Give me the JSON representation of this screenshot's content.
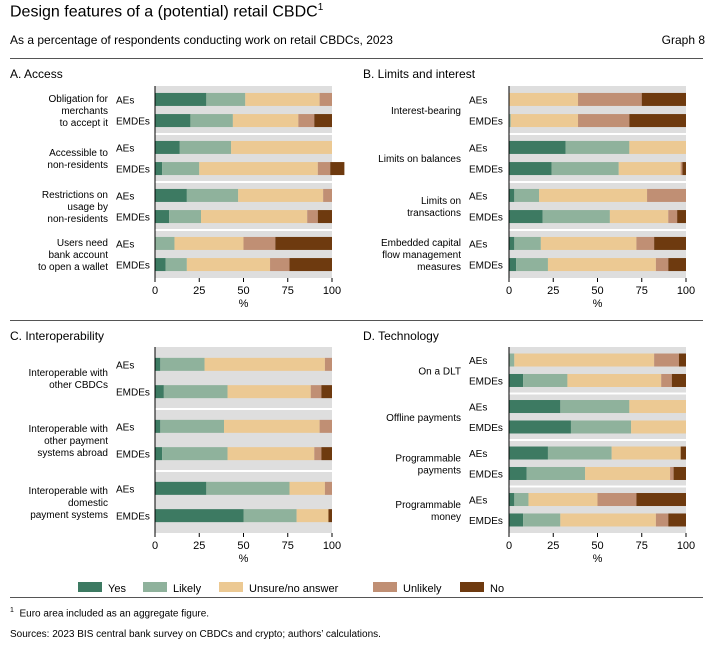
{
  "title": "Design features of a (potential) retail CBDC",
  "title_note": "1",
  "subtitle": "As a percentage of respondents conducting work on retail CBDCs, 2023",
  "graph_number": "Graph 8",
  "footnote_mark": "1",
  "footnote": "Euro area included as an aggregate figure.",
  "sources": "Sources: 2023 BIS central bank survey on CBDCs and crypto; authors’ calculations.",
  "colors": {
    "Yes": "#3d7a62",
    "Likely": "#8fb29c",
    "Unsure/no answer": "#ecc993",
    "Unlikely": "#c08f74",
    "No": "#6e3a0f",
    "panel_bg": "#dedede"
  },
  "chart_data": [
    {
      "type": "bar",
      "orientation": "horizontal",
      "stacked": true,
      "title": "A. Access",
      "xlabel": "%",
      "xlim": [
        0,
        100
      ],
      "xticks": [
        0,
        25,
        50,
        75,
        100
      ],
      "series_names": [
        "Yes",
        "Likely",
        "Unsure/no answer",
        "Unlikely",
        "No"
      ],
      "groups": [
        {
          "label": [
            "Obligation for",
            "merchants",
            "to accept it"
          ],
          "rows": [
            {
              "name": "AEs",
              "values": [
                29,
                22,
                42,
                7,
                0
              ]
            },
            {
              "name": "EMDEs",
              "values": [
                20,
                24,
                37,
                9,
                10
              ]
            }
          ]
        },
        {
          "label": [
            "Accessible to",
            "non-residents"
          ],
          "rows": [
            {
              "name": "AEs",
              "values": [
                14,
                29,
                57,
                0,
                0
              ]
            },
            {
              "name": "EMDEs",
              "values": [
                4,
                21,
                67,
                7,
                8
              ]
            }
          ]
        },
        {
          "label": [
            "Restrictions on",
            "usage by",
            "non-residents"
          ],
          "rows": [
            {
              "name": "AEs",
              "values": [
                18,
                29,
                48,
                5,
                0
              ]
            },
            {
              "name": "EMDEs",
              "values": [
                8,
                18,
                60,
                6,
                8
              ]
            }
          ]
        },
        {
          "label": [
            "Users need",
            "bank account",
            "to open a wallet"
          ],
          "rows": [
            {
              "name": "AEs",
              "values": [
                0,
                11,
                39,
                18,
                32
              ]
            },
            {
              "name": "EMDEs",
              "values": [
                6,
                12,
                47,
                11,
                24
              ]
            }
          ]
        }
      ]
    },
    {
      "type": "bar",
      "orientation": "horizontal",
      "stacked": true,
      "title": "B. Limits and interest",
      "xlabel": "%",
      "xlim": [
        0,
        100
      ],
      "xticks": [
        0,
        25,
        50,
        75,
        100
      ],
      "series_names": [
        "Yes",
        "Likely",
        "Unsure/no answer",
        "Unlikely",
        "No"
      ],
      "groups": [
        {
          "label": [
            "Interest-bearing"
          ],
          "rows": [
            {
              "name": "AEs",
              "values": [
                0,
                0,
                39,
                36,
                25
              ]
            },
            {
              "name": "EMDEs",
              "values": [
                0,
                1,
                38,
                29,
                32
              ]
            }
          ]
        },
        {
          "label": [
            "Limits on balances"
          ],
          "rows": [
            {
              "name": "AEs",
              "values": [
                32,
                36,
                32,
                0,
                0
              ]
            },
            {
              "name": "EMDEs",
              "values": [
                24,
                38,
                35,
                1,
                2
              ]
            }
          ]
        },
        {
          "label": [
            "Limits on",
            "transactions"
          ],
          "rows": [
            {
              "name": "AEs",
              "values": [
                3,
                14,
                61,
                22,
                0
              ]
            },
            {
              "name": "EMDEs",
              "values": [
                19,
                38,
                33,
                5,
                5
              ]
            }
          ]
        },
        {
          "label": [
            "Embedded capital",
            "flow management",
            "measures"
          ],
          "rows": [
            {
              "name": "AEs",
              "values": [
                3,
                15,
                54,
                10,
                18
              ]
            },
            {
              "name": "EMDEs",
              "values": [
                4,
                18,
                61,
                7,
                10
              ]
            }
          ]
        }
      ]
    },
    {
      "type": "bar",
      "orientation": "horizontal",
      "stacked": true,
      "title": "C. Interoperability",
      "xlabel": "%",
      "xlim": [
        0,
        100
      ],
      "xticks": [
        0,
        25,
        50,
        75,
        100
      ],
      "series_names": [
        "Yes",
        "Likely",
        "Unsure/no answer",
        "Unlikely",
        "No"
      ],
      "groups": [
        {
          "label": [
            "Interoperable with",
            "other CBDCs"
          ],
          "rows": [
            {
              "name": "AEs",
              "values": [
                3,
                25,
                68,
                4,
                0
              ]
            },
            {
              "name": "EMDEs",
              "values": [
                5,
                36,
                47,
                6,
                6
              ]
            }
          ]
        },
        {
          "label": [
            "Interoperable with",
            "other payment",
            "systems abroad"
          ],
          "rows": [
            {
              "name": "AEs",
              "values": [
                3,
                36,
                54,
                7,
                0
              ]
            },
            {
              "name": "EMDEs",
              "values": [
                4,
                37,
                49,
                4,
                6
              ]
            }
          ]
        },
        {
          "label": [
            "Interoperable with",
            "domestic",
            "payment systems"
          ],
          "rows": [
            {
              "name": "AEs",
              "values": [
                29,
                47,
                20,
                4,
                0
              ]
            },
            {
              "name": "EMDEs",
              "values": [
                50,
                30,
                18,
                0,
                2
              ]
            }
          ]
        }
      ]
    },
    {
      "type": "bar",
      "orientation": "horizontal",
      "stacked": true,
      "title": "D. Technology",
      "xlabel": "%",
      "xlim": [
        0,
        100
      ],
      "xticks": [
        0,
        25,
        50,
        75,
        100
      ],
      "series_names": [
        "Yes",
        "Likely",
        "Unsure/no answer",
        "Unlikely",
        "No"
      ],
      "groups": [
        {
          "label": [
            "On a DLT"
          ],
          "rows": [
            {
              "name": "AEs",
              "values": [
                0,
                3,
                79,
                14,
                4
              ]
            },
            {
              "name": "EMDEs",
              "values": [
                8,
                25,
                53,
                6,
                8
              ]
            }
          ]
        },
        {
          "label": [
            "Offline payments"
          ],
          "rows": [
            {
              "name": "AEs",
              "values": [
                29,
                39,
                32,
                0,
                0
              ]
            },
            {
              "name": "EMDEs",
              "values": [
                35,
                34,
                31,
                0,
                0
              ]
            }
          ]
        },
        {
          "label": [
            "Programmable",
            "payments"
          ],
          "rows": [
            {
              "name": "AEs",
              "values": [
                22,
                36,
                39,
                0,
                3
              ]
            },
            {
              "name": "EMDEs",
              "values": [
                10,
                33,
                48,
                2,
                7
              ]
            }
          ]
        },
        {
          "label": [
            "Programmable",
            "money"
          ],
          "rows": [
            {
              "name": "AEs",
              "values": [
                3,
                8,
                39,
                22,
                28
              ]
            },
            {
              "name": "EMDEs",
              "values": [
                8,
                21,
                54,
                7,
                10
              ]
            }
          ]
        }
      ]
    }
  ]
}
